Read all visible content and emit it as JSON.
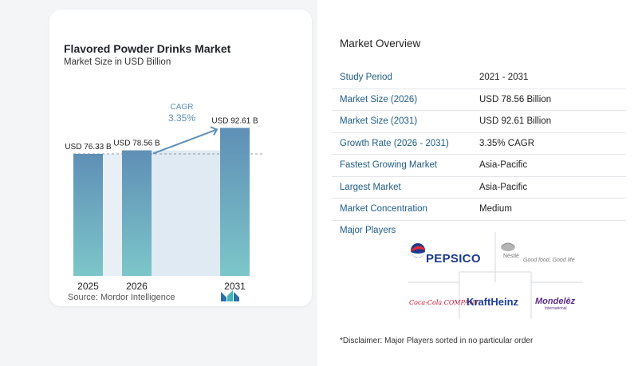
{
  "chart_card": {
    "title": "Flavored Powder Drinks Market",
    "subtitle": "Market Size in USD Billion",
    "source": "Source:  Mordor Intelligence",
    "logo_icon": "mordor-intelligence-logo"
  },
  "chart_data": {
    "type": "bar",
    "categories": [
      "2025",
      "2026",
      "2031"
    ],
    "values": [
      76.33,
      78.56,
      92.61
    ],
    "value_labels": [
      "USD 76.33 B",
      "USD 78.56 B",
      "USD 92.61 B"
    ],
    "cagr_label": "CAGR",
    "cagr_value": "3.35%",
    "title": "Flavored Powder Drinks Market",
    "ylabel": "Market Size in USD Billion",
    "colors": {
      "bar_top": "#5f8fb6",
      "bar_bottom": "#7cc6c9",
      "shade": "#dfeaf2",
      "cagr_text": "#5d8fb8",
      "arrow": "#5d8fb8"
    }
  },
  "overview": {
    "title": "Market Overview",
    "rows": [
      {
        "key": "Study Period",
        "value": "2021 - 2031"
      },
      {
        "key": "Market Size (2026)",
        "value": "USD 78.56 Billion"
      },
      {
        "key": "Market Size (2031)",
        "value": "USD 92.61 Billion"
      },
      {
        "key": "Growth Rate (2026 - 2031)",
        "value": "3.35% CAGR"
      },
      {
        "key": "Fastest Growing Market",
        "value": "Asia-Pacific"
      },
      {
        "key": "Largest Market",
        "value": "Asia-Pacific"
      },
      {
        "key": "Market Concentration",
        "value": "Medium"
      }
    ],
    "players_title": "Major Players",
    "players": {
      "pepsico": "PEPSICO",
      "nestle": "Nestlé",
      "nestle_tagline": "Good food, Good life",
      "coca_cola": "Coca-Cola COMPANY",
      "kraft_heinz": "KraftHeinz",
      "mondelez": "Mondelēz",
      "mondelez_sub": "International"
    },
    "disclaimer": "*Disclaimer: Major Players sorted in no particular order"
  }
}
